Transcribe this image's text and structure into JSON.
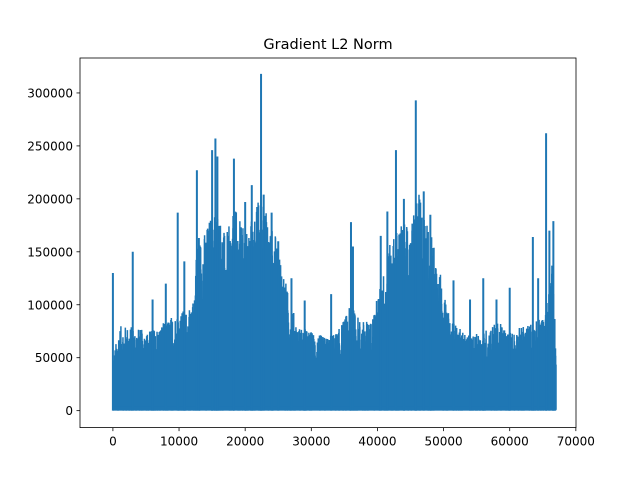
{
  "chart_data": {
    "type": "line",
    "title": "Gradient L2 Norm",
    "xlabel": "",
    "ylabel": "",
    "xlim": [
      -4975,
      70023
    ],
    "ylim": [
      -16000,
      333000
    ],
    "x_ticks": [
      0,
      10000,
      20000,
      30000,
      40000,
      50000,
      60000,
      70000
    ],
    "x_tick_labels": [
      "0",
      "10000",
      "20000",
      "30000",
      "40000",
      "50000",
      "60000",
      "70000"
    ],
    "y_ticks": [
      0,
      50000,
      100000,
      150000,
      200000,
      250000,
      300000
    ],
    "y_tick_labels": [
      "0",
      "50000",
      "100000",
      "150000",
      "200000",
      "250000",
      "300000"
    ],
    "grid": false,
    "series_color": "#1f77b4",
    "x_max": 67000,
    "envelope": {
      "x": [
        0,
        1000,
        3000,
        5000,
        7000,
        9000,
        10500,
        12000,
        12700,
        14000,
        15500,
        17000,
        18500,
        20000,
        21500,
        22400,
        23500,
        25000,
        26500,
        28000,
        30000,
        32000,
        34000,
        36000,
        37500,
        39000,
        40500,
        42000,
        43500,
        45000,
        46000,
        47500,
        49000,
        50500,
        52000,
        54000,
        56000,
        58000,
        60000,
        62000,
        64000,
        65500,
        66500,
        67000
      ],
      "y": [
        50000,
        80000,
        80000,
        75000,
        80000,
        90000,
        95000,
        95000,
        160000,
        170000,
        200000,
        165000,
        190000,
        170000,
        190000,
        210000,
        180000,
        160000,
        110000,
        80000,
        75000,
        70000,
        75000,
        100000,
        85000,
        85000,
        120000,
        160000,
        180000,
        170000,
        210000,
        180000,
        150000,
        95000,
        80000,
        70000,
        75000,
        85000,
        75000,
        80000,
        85000,
        95000,
        150000,
        60000
      ]
    },
    "spikes": [
      {
        "x": 0,
        "y": 130000
      },
      {
        "x": 3000,
        "y": 150000
      },
      {
        "x": 6000,
        "y": 105000
      },
      {
        "x": 8000,
        "y": 120000
      },
      {
        "x": 9800,
        "y": 187000
      },
      {
        "x": 10800,
        "y": 141000
      },
      {
        "x": 12700,
        "y": 227000
      },
      {
        "x": 13000,
        "y": 163000
      },
      {
        "x": 15000,
        "y": 246000
      },
      {
        "x": 15500,
        "y": 257000
      },
      {
        "x": 15800,
        "y": 240000
      },
      {
        "x": 18300,
        "y": 238000
      },
      {
        "x": 20000,
        "y": 197000
      },
      {
        "x": 21000,
        "y": 213000
      },
      {
        "x": 22400,
        "y": 318000
      },
      {
        "x": 22800,
        "y": 204000
      },
      {
        "x": 24000,
        "y": 187000
      },
      {
        "x": 25000,
        "y": 160000
      },
      {
        "x": 27000,
        "y": 125000
      },
      {
        "x": 29000,
        "y": 104000
      },
      {
        "x": 33000,
        "y": 110000
      },
      {
        "x": 36000,
        "y": 178000
      },
      {
        "x": 36300,
        "y": 155000
      },
      {
        "x": 40500,
        "y": 165000
      },
      {
        "x": 41500,
        "y": 188000
      },
      {
        "x": 42800,
        "y": 246000
      },
      {
        "x": 44000,
        "y": 200000
      },
      {
        "x": 45800,
        "y": 293000
      },
      {
        "x": 47000,
        "y": 207000
      },
      {
        "x": 48000,
        "y": 185000
      },
      {
        "x": 51500,
        "y": 123000
      },
      {
        "x": 54000,
        "y": 105000
      },
      {
        "x": 56000,
        "y": 125000
      },
      {
        "x": 58000,
        "y": 105000
      },
      {
        "x": 60000,
        "y": 116000
      },
      {
        "x": 63500,
        "y": 164000
      },
      {
        "x": 64300,
        "y": 125000
      },
      {
        "x": 65500,
        "y": 262000
      },
      {
        "x": 66000,
        "y": 170000
      },
      {
        "x": 66600,
        "y": 179000
      }
    ]
  }
}
